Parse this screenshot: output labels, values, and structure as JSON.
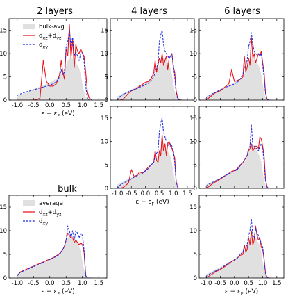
{
  "figure": {
    "colors": {
      "bulk_fill": "#e0e0e0",
      "dxz_dyz": "#e8141b",
      "dxy": "#1f2ee0",
      "frame": "#000000"
    },
    "shared_axes": {
      "xlim": [
        -1.25,
        1.75
      ],
      "ylim": [
        0,
        17.5
      ],
      "xticks": [
        "-1.0",
        "-0.5",
        "0.0",
        "0.5",
        "1.0",
        "1.5"
      ],
      "yticks": [
        "0",
        "5",
        "10",
        "15"
      ]
    }
  },
  "chart_data": [
    {
      "id": "p2_top",
      "type": "area",
      "title": "2 layers",
      "xlabel_parts": [
        "ε − ε",
        "F",
        "  (eV)"
      ],
      "legend": {
        "entries": [
          "bulk-avg.",
          "d",
          "d"
        ],
        "subs": [
          "",
          "xz",
          "xy"
        ],
        "plus_sub": "yz",
        "plus": "+d"
      },
      "x": [
        -1.0,
        -0.9,
        -0.8,
        -0.7,
        -0.6,
        -0.5,
        -0.4,
        -0.3,
        -0.2,
        -0.1,
        0.0,
        0.1,
        0.2,
        0.3,
        0.35,
        0.4,
        0.45,
        0.5,
        0.55,
        0.6,
        0.65,
        0.7,
        0.75,
        0.8,
        0.85,
        0.9,
        0.95,
        1.0,
        1.05,
        1.1,
        1.15,
        1.2,
        1.3
      ],
      "series": [
        {
          "name": "bulk-avg.",
          "kind": "fill",
          "values": [
            0.8,
            1.1,
            1.4,
            1.7,
            2.0,
            2.3,
            2.6,
            2.9,
            3.2,
            3.5,
            3.8,
            4.2,
            4.6,
            5.2,
            5.6,
            6.0,
            6.8,
            7.5,
            8.5,
            9.0,
            9.2,
            9.0,
            8.5,
            8.0,
            7.4,
            6.8,
            5.5,
            3.5,
            1.8,
            0.6,
            0.2,
            0.0,
            0.0
          ]
        },
        {
          "name": "dxz+dyz",
          "kind": "line",
          "values": [
            0,
            0,
            0,
            0,
            0,
            0,
            0.1,
            0.4,
            8.5,
            4.0,
            3.0,
            3.0,
            3.5,
            5.5,
            8.5,
            6.0,
            4.5,
            11.0,
            9.5,
            16.2,
            9.0,
            13.0,
            7.0,
            12.0,
            10.5,
            10.0,
            11.0,
            10.0,
            9.5,
            6.0,
            2.0,
            0.5,
            0.0
          ]
        },
        {
          "name": "dxy",
          "kind": "dash",
          "values": [
            1.0,
            1.3,
            1.6,
            1.8,
            2.0,
            2.2,
            2.4,
            2.6,
            2.8,
            3.0,
            3.2,
            3.5,
            4.0,
            5.0,
            6.5,
            5.5,
            6.0,
            11.5,
            12.5,
            15.0,
            11.5,
            13.5,
            9.5,
            10.5,
            9.5,
            8.5,
            10.0,
            10.2,
            8.5,
            3.0,
            0.5,
            0.0,
            0.0
          ]
        }
      ]
    },
    {
      "id": "p4_top",
      "type": "area",
      "title": "4 layers",
      "x": [
        -1.0,
        -0.9,
        -0.8,
        -0.7,
        -0.6,
        -0.5,
        -0.4,
        -0.3,
        -0.2,
        -0.1,
        0.0,
        0.1,
        0.2,
        0.3,
        0.35,
        0.4,
        0.45,
        0.5,
        0.55,
        0.6,
        0.65,
        0.7,
        0.75,
        0.8,
        0.85,
        0.9,
        0.95,
        1.0,
        1.05,
        1.1,
        1.15,
        1.2,
        1.3
      ],
      "series": [
        {
          "name": "bulk-avg.",
          "kind": "fill",
          "values": [
            0.8,
            1.1,
            1.4,
            1.7,
            2.0,
            2.3,
            2.6,
            2.9,
            3.2,
            3.5,
            3.8,
            4.2,
            4.6,
            5.2,
            5.6,
            6.0,
            6.8,
            7.5,
            8.5,
            9.0,
            9.2,
            9.0,
            8.5,
            8.0,
            7.4,
            6.8,
            5.5,
            3.5,
            1.8,
            0.6,
            0.2,
            0.0,
            0.0
          ]
        },
        {
          "name": "dxz+dyz",
          "kind": "line",
          "values": [
            0,
            0,
            0.2,
            0.8,
            1.5,
            2.0,
            2.2,
            2.5,
            3.0,
            3.4,
            3.8,
            4.0,
            4.6,
            5.8,
            8.5,
            6.0,
            7.5,
            9.0,
            8.0,
            10.0,
            7.5,
            8.5,
            9.5,
            6.5,
            9.0,
            9.5,
            10.0,
            7.0,
            6.0,
            2.0,
            0.6,
            0.1,
            0.0
          ]
        },
        {
          "name": "dxy",
          "kind": "dash",
          "values": [
            0,
            0.8,
            1.2,
            1.5,
            1.8,
            2.0,
            2.3,
            2.5,
            2.8,
            3.0,
            3.3,
            3.6,
            4.2,
            5.0,
            6.0,
            6.8,
            8.0,
            12.5,
            14.0,
            15.0,
            12.0,
            10.5,
            10.0,
            9.5,
            9.0,
            9.5,
            10.0,
            7.5,
            5.0,
            1.5,
            0.3,
            0.0,
            0.0
          ]
        }
      ]
    },
    {
      "id": "p6_top",
      "type": "area",
      "title": "6 layers",
      "x": [
        -1.0,
        -0.9,
        -0.8,
        -0.7,
        -0.6,
        -0.5,
        -0.4,
        -0.3,
        -0.2,
        -0.1,
        0.0,
        0.1,
        0.2,
        0.3,
        0.35,
        0.4,
        0.45,
        0.5,
        0.55,
        0.6,
        0.65,
        0.7,
        0.75,
        0.8,
        0.85,
        0.9,
        0.95,
        1.0,
        1.05,
        1.1,
        1.15,
        1.2,
        1.3
      ],
      "series": [
        {
          "name": "bulk-avg.",
          "kind": "fill",
          "values": [
            0.8,
            1.1,
            1.4,
            1.7,
            2.0,
            2.3,
            2.6,
            2.9,
            3.2,
            3.5,
            3.8,
            4.2,
            4.6,
            5.2,
            5.6,
            6.0,
            6.8,
            7.5,
            8.5,
            9.0,
            9.2,
            9.0,
            8.5,
            8.0,
            7.4,
            6.8,
            5.5,
            3.5,
            1.8,
            0.6,
            0.2,
            0.0,
            0.0
          ]
        },
        {
          "name": "dxz+dyz",
          "kind": "line",
          "values": [
            0,
            0.5,
            1.0,
            1.5,
            1.8,
            2.0,
            2.5,
            3.0,
            3.5,
            6.5,
            4.0,
            4.2,
            4.5,
            5.0,
            9.5,
            6.0,
            7.0,
            9.0,
            7.5,
            13.5,
            9.0,
            10.0,
            8.0,
            9.0,
            10.0,
            9.5,
            10.5,
            8.0,
            6.0,
            1.5,
            0.3,
            0.0,
            0.0
          ]
        },
        {
          "name": "dxy",
          "kind": "dash",
          "values": [
            0.5,
            0.9,
            1.3,
            1.6,
            1.9,
            2.2,
            2.5,
            2.8,
            3.0,
            3.2,
            3.5,
            3.8,
            4.5,
            5.5,
            7.0,
            7.5,
            8.5,
            11.5,
            12.5,
            14.5,
            12.0,
            10.5,
            10.0,
            9.8,
            10.0,
            9.5,
            10.0,
            7.5,
            5.0,
            1.5,
            0.3,
            0.0,
            0.0
          ]
        }
      ]
    },
    {
      "id": "p4_mid",
      "type": "area",
      "xlabel_parts": [
        "ε − ε",
        "F",
        "  (eV)"
      ],
      "x": [
        -1.0,
        -0.9,
        -0.8,
        -0.7,
        -0.6,
        -0.5,
        -0.4,
        -0.3,
        -0.2,
        -0.1,
        0.0,
        0.1,
        0.2,
        0.3,
        0.35,
        0.4,
        0.45,
        0.5,
        0.55,
        0.6,
        0.65,
        0.7,
        0.75,
        0.8,
        0.85,
        0.9,
        0.95,
        1.0,
        1.05,
        1.1,
        1.15,
        1.2,
        1.3
      ],
      "series": [
        {
          "name": "bulk-avg.",
          "kind": "fill",
          "values": [
            0.8,
            1.1,
            1.4,
            1.7,
            2.0,
            2.3,
            2.6,
            2.9,
            3.2,
            3.5,
            3.8,
            4.2,
            4.6,
            5.2,
            5.6,
            6.0,
            6.8,
            7.5,
            8.5,
            9.0,
            9.2,
            9.0,
            8.5,
            8.0,
            7.4,
            6.8,
            5.5,
            3.5,
            1.8,
            0.6,
            0.2,
            0.0,
            0.0
          ]
        },
        {
          "name": "dxz+dyz",
          "kind": "line",
          "values": [
            0,
            0,
            0.2,
            0.6,
            1.2,
            4.0,
            2.5,
            2.8,
            3.5,
            3.2,
            3.8,
            4.5,
            5.0,
            5.5,
            8.0,
            6.0,
            5.5,
            8.0,
            7.0,
            11.5,
            8.0,
            9.5,
            7.0,
            9.5,
            10.0,
            9.0,
            8.5,
            7.5,
            6.5,
            1.5,
            0.3,
            0.0,
            0.0
          ]
        },
        {
          "name": "dxy",
          "kind": "dash",
          "values": [
            0,
            0.7,
            1.1,
            1.4,
            1.7,
            2.0,
            2.4,
            2.7,
            3.0,
            3.3,
            3.7,
            4.2,
            5.0,
            5.5,
            7.0,
            7.5,
            8.0,
            12.0,
            14.0,
            15.0,
            12.0,
            11.0,
            10.0,
            9.5,
            9.0,
            9.5,
            9.0,
            8.0,
            5.5,
            1.5,
            0.3,
            0.0,
            0.0
          ]
        }
      ]
    },
    {
      "id": "p6_mid",
      "type": "area",
      "x": [
        -1.0,
        -0.9,
        -0.8,
        -0.7,
        -0.6,
        -0.5,
        -0.4,
        -0.3,
        -0.2,
        -0.1,
        0.0,
        0.1,
        0.2,
        0.3,
        0.35,
        0.4,
        0.45,
        0.5,
        0.55,
        0.6,
        0.65,
        0.7,
        0.75,
        0.8,
        0.85,
        0.9,
        0.95,
        1.0,
        1.05,
        1.1,
        1.15,
        1.2,
        1.3
      ],
      "series": [
        {
          "name": "bulk-avg.",
          "kind": "fill",
          "values": [
            0.8,
            1.1,
            1.4,
            1.7,
            2.0,
            2.3,
            2.6,
            2.9,
            3.2,
            3.5,
            3.8,
            4.2,
            4.6,
            5.2,
            5.6,
            6.0,
            6.8,
            7.5,
            8.5,
            9.0,
            9.2,
            9.0,
            8.5,
            8.0,
            7.4,
            6.8,
            5.5,
            3.5,
            1.8,
            0.6,
            0.2,
            0.0,
            0.0
          ]
        },
        {
          "name": "dxz+dyz",
          "kind": "line",
          "values": [
            0,
            0.4,
            0.9,
            1.3,
            1.6,
            2.0,
            2.4,
            2.8,
            3.2,
            3.6,
            3.8,
            4.2,
            5.0,
            5.5,
            6.0,
            6.5,
            7.0,
            8.0,
            8.5,
            9.5,
            8.0,
            8.5,
            9.0,
            9.0,
            8.5,
            11.0,
            10.5,
            9.0,
            7.0,
            2.0,
            0.4,
            0.0,
            0.0
          ]
        },
        {
          "name": "dxy",
          "kind": "dash",
          "values": [
            0.5,
            0.9,
            1.2,
            1.5,
            1.8,
            2.1,
            2.5,
            2.8,
            3.1,
            3.4,
            3.7,
            4.0,
            4.8,
            5.5,
            6.0,
            6.5,
            7.0,
            8.5,
            9.0,
            13.5,
            9.0,
            9.0,
            8.5,
            8.5,
            8.0,
            9.0,
            9.5,
            8.5,
            5.5,
            1.5,
            0.3,
            0.0,
            0.0
          ]
        }
      ]
    },
    {
      "id": "bulk",
      "type": "area",
      "title": "bulk",
      "xlabel_parts": [
        "ε − ε",
        "F",
        "  (eV)"
      ],
      "legend": {
        "entries": [
          "average",
          "d",
          "d"
        ],
        "subs": [
          "",
          "xz",
          "xy"
        ],
        "plus_sub": "yz",
        "plus": "+d"
      },
      "x": [
        -1.0,
        -0.9,
        -0.8,
        -0.7,
        -0.6,
        -0.5,
        -0.4,
        -0.3,
        -0.2,
        -0.1,
        0.0,
        0.1,
        0.2,
        0.3,
        0.35,
        0.4,
        0.45,
        0.5,
        0.55,
        0.6,
        0.65,
        0.7,
        0.75,
        0.8,
        0.85,
        0.9,
        0.95,
        1.0,
        1.05,
        1.1,
        1.15,
        1.2,
        1.3
      ],
      "series": [
        {
          "name": "average",
          "kind": "fill",
          "values": [
            0.8,
            1.1,
            1.4,
            1.7,
            2.0,
            2.3,
            2.6,
            2.9,
            3.2,
            3.5,
            3.8,
            4.2,
            4.6,
            5.2,
            5.6,
            6.0,
            6.8,
            7.5,
            8.5,
            9.0,
            9.2,
            9.0,
            8.5,
            8.0,
            7.4,
            6.8,
            5.5,
            3.5,
            1.8,
            0.6,
            0.2,
            0.0,
            0.0
          ]
        },
        {
          "name": "dxz+dyz",
          "kind": "line",
          "values": [
            0.5,
            1.3,
            1.6,
            1.9,
            2.2,
            2.5,
            2.8,
            3.1,
            3.4,
            3.7,
            4.0,
            4.3,
            4.7,
            5.2,
            5.6,
            6.0,
            6.8,
            8.0,
            9.5,
            9.0,
            8.5,
            8.5,
            7.5,
            8.0,
            7.5,
            7.0,
            7.5,
            7.0,
            5.5,
            0.5,
            0.0,
            0.0,
            0.0
          ]
        },
        {
          "name": "dxy",
          "kind": "dash",
          "values": [
            0.5,
            1.2,
            1.5,
            1.8,
            2.1,
            2.4,
            2.7,
            3.0,
            3.3,
            3.6,
            3.9,
            4.2,
            4.6,
            5.0,
            5.5,
            6.0,
            6.8,
            8.0,
            11.0,
            10.0,
            8.5,
            10.0,
            8.0,
            10.0,
            9.5,
            8.5,
            9.5,
            9.0,
            6.0,
            0.5,
            0.0,
            0.0,
            0.0
          ]
        }
      ]
    },
    {
      "id": "p6_bot",
      "type": "area",
      "xlabel_parts": [
        "ε − ε",
        "F",
        "  (eV)"
      ],
      "x": [
        -1.0,
        -0.9,
        -0.8,
        -0.7,
        -0.6,
        -0.5,
        -0.4,
        -0.3,
        -0.2,
        -0.1,
        0.0,
        0.1,
        0.2,
        0.3,
        0.35,
        0.4,
        0.45,
        0.5,
        0.55,
        0.6,
        0.65,
        0.7,
        0.75,
        0.8,
        0.85,
        0.9,
        0.95,
        1.0,
        1.05,
        1.1,
        1.15,
        1.2,
        1.3
      ],
      "series": [
        {
          "name": "bulk-avg.",
          "kind": "fill",
          "values": [
            0.8,
            1.1,
            1.4,
            1.7,
            2.0,
            2.3,
            2.6,
            2.9,
            3.2,
            3.5,
            3.8,
            4.2,
            4.6,
            5.2,
            5.6,
            6.0,
            6.8,
            7.5,
            8.5,
            9.0,
            9.2,
            9.0,
            8.5,
            8.0,
            7.4,
            6.8,
            5.5,
            3.5,
            1.8,
            0.6,
            0.2,
            0.0,
            0.0
          ]
        },
        {
          "name": "dxz+dyz",
          "kind": "line",
          "values": [
            0,
            0.4,
            0.8,
            1.2,
            1.5,
            1.8,
            2.2,
            2.6,
            3.0,
            3.5,
            3.8,
            4.2,
            4.8,
            5.0,
            7.0,
            5.5,
            6.0,
            8.5,
            7.0,
            10.0,
            7.0,
            8.0,
            11.0,
            9.0,
            8.0,
            8.5,
            6.5,
            6.0,
            4.0,
            1.0,
            0.2,
            0.0,
            0.0
          ]
        },
        {
          "name": "dxy",
          "kind": "dash",
          "values": [
            0.4,
            0.8,
            1.1,
            1.4,
            1.7,
            2.0,
            2.4,
            2.8,
            3.2,
            3.5,
            3.9,
            4.2,
            5.0,
            5.5,
            6.5,
            6.5,
            7.0,
            9.0,
            10.0,
            12.5,
            9.0,
            8.5,
            10.5,
            9.5,
            9.0,
            8.0,
            7.5,
            6.5,
            4.0,
            0.8,
            0.1,
            0.0,
            0.0
          ]
        }
      ]
    }
  ]
}
